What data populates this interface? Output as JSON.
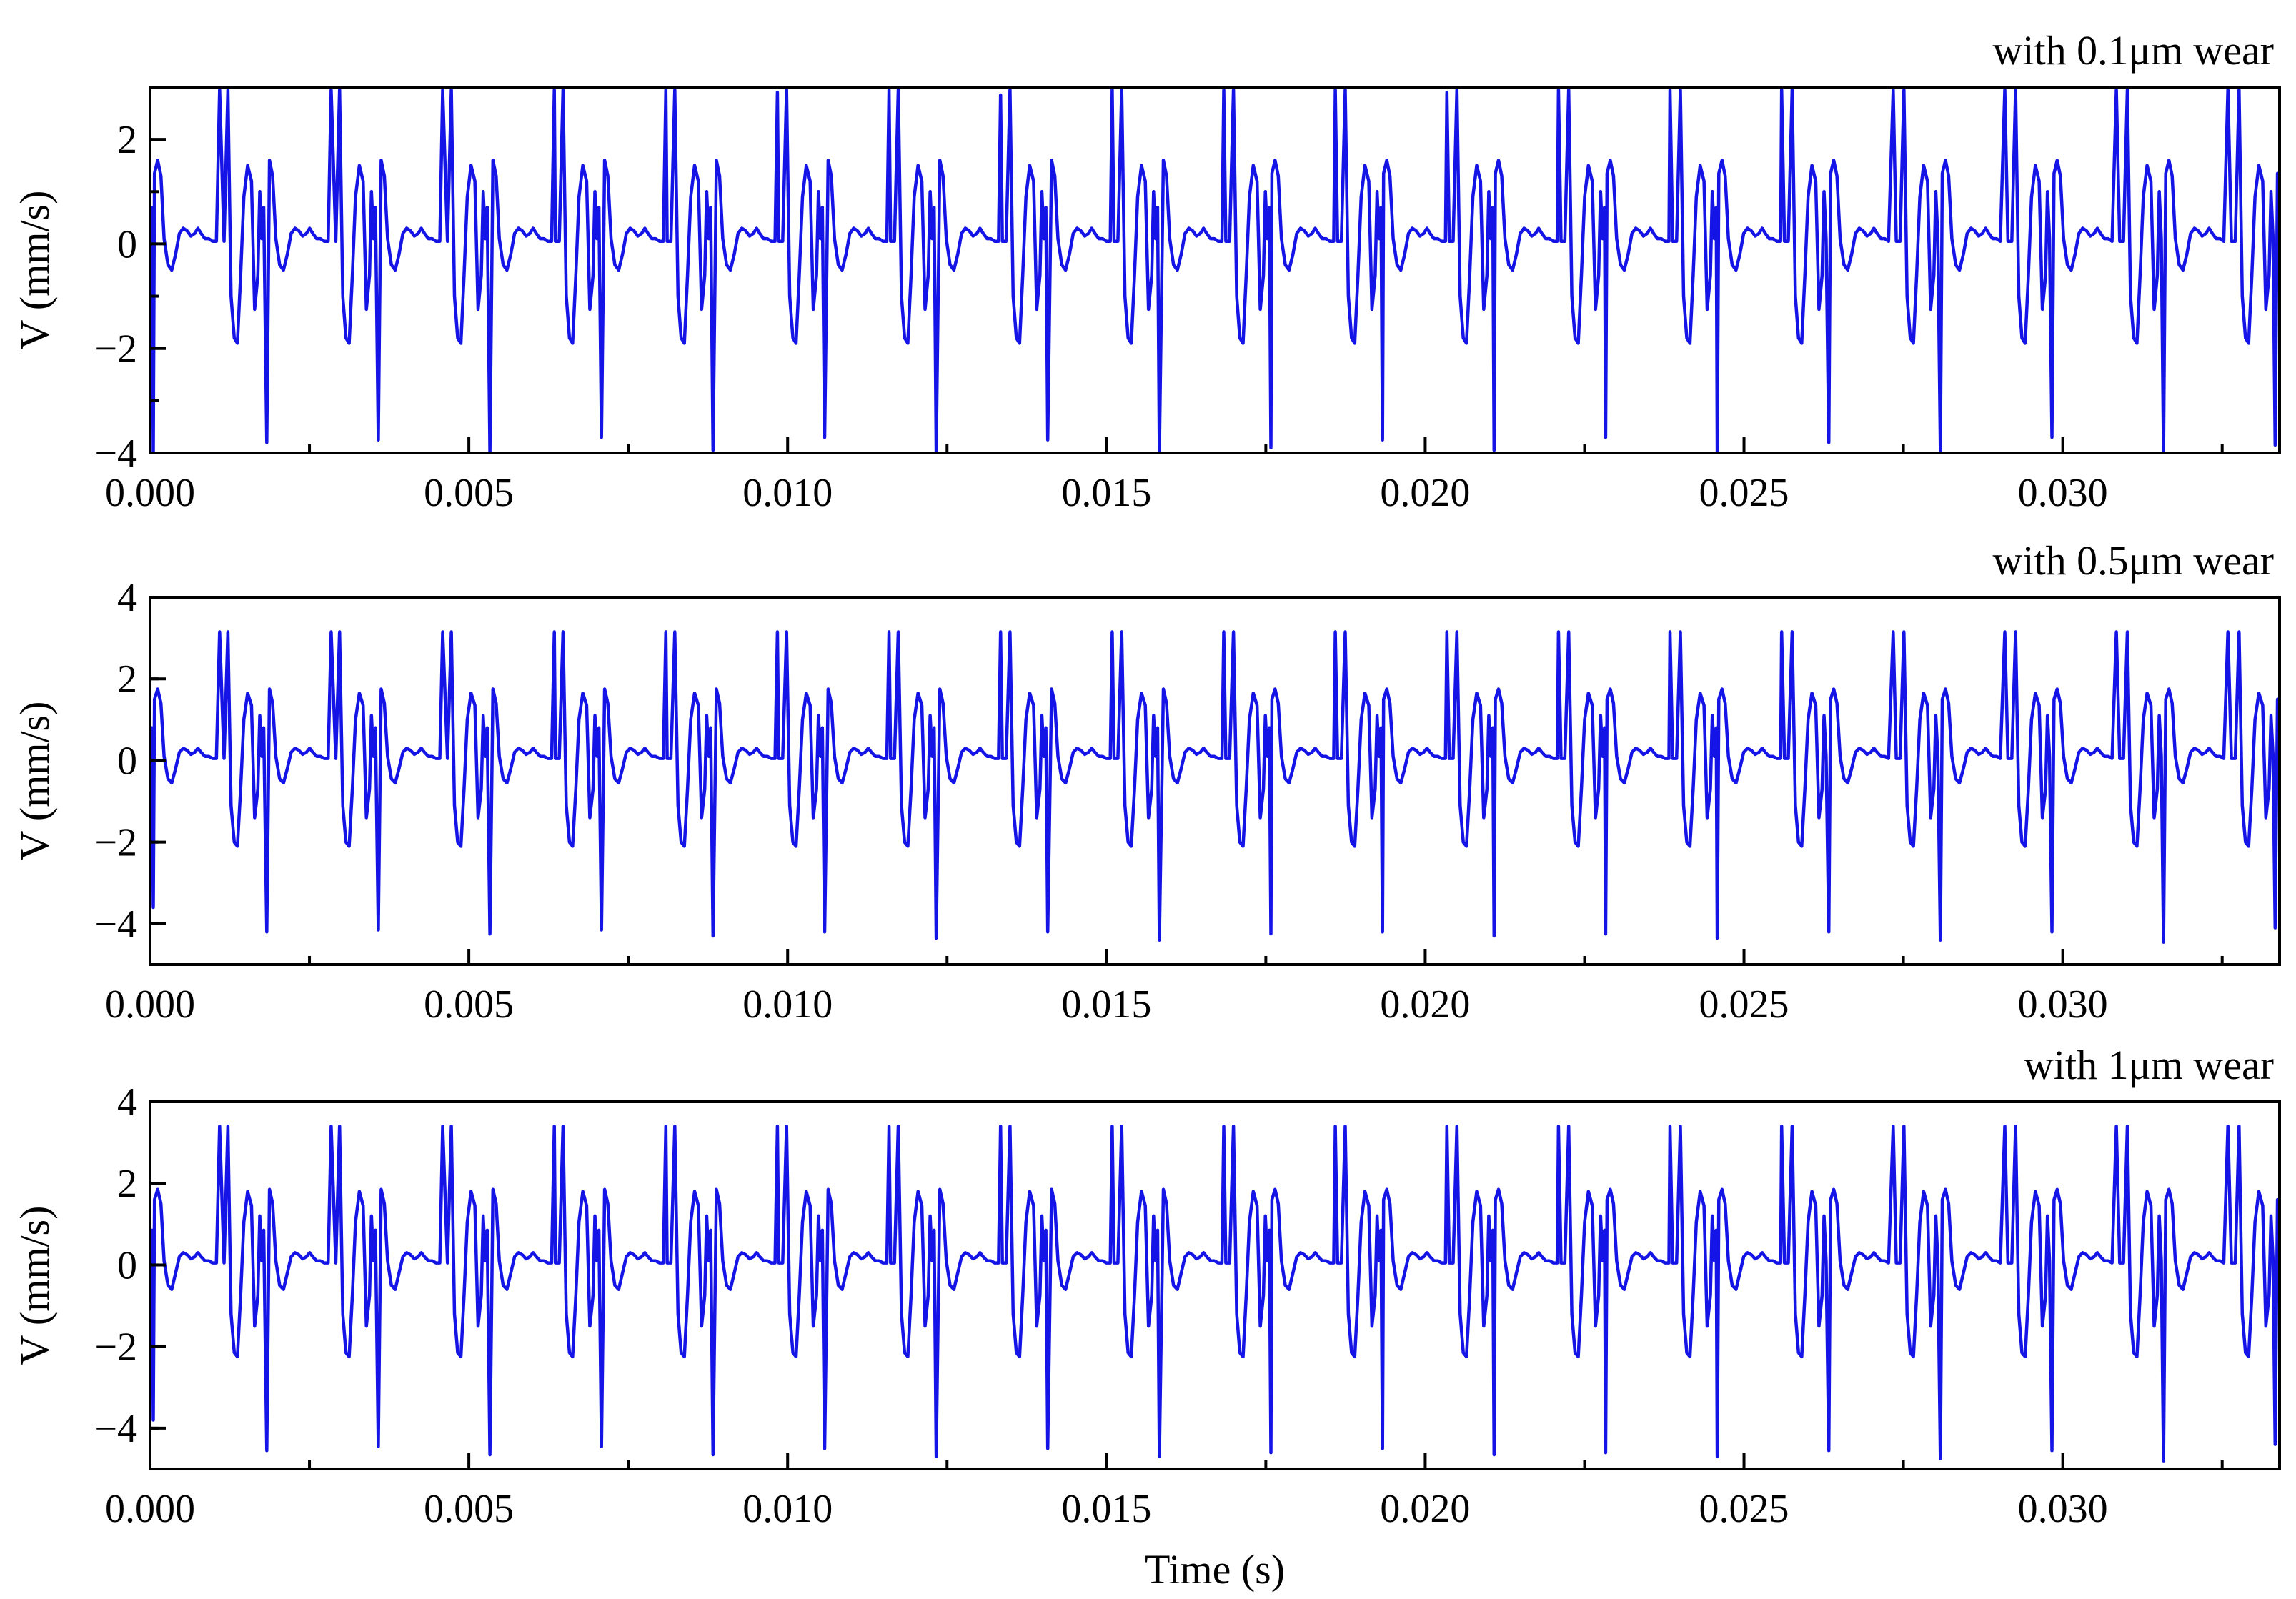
{
  "chart_data": [
    {
      "type": "line",
      "title": "with 0.1μm wear",
      "xlabel": "",
      "ylabel": "V (mm/s)",
      "xlim": [
        0,
        0.0334
      ],
      "ylim": [
        -4,
        3
      ],
      "xticks": [
        0.0,
        0.005,
        0.01,
        0.015,
        0.02,
        0.025,
        0.03
      ],
      "xtick_labels": [
        "0.000",
        "0.005",
        "0.010",
        "0.015",
        "0.020",
        "0.025",
        "0.030"
      ],
      "yticks": [
        -4,
        -2,
        0,
        2
      ],
      "ytick_labels": [
        "−4",
        "−2",
        "0",
        "2"
      ],
      "grid": false,
      "series": [
        {
          "color": "#1414e6",
          "period": 0.0017525,
          "cycle": {
            "t": [
              0,
              3e-05,
              7e-05,
              0.00012,
              0.00017,
              0.00022,
              0.00028,
              0.00034,
              0.0004,
              0.00046,
              0.00052,
              0.00058,
              0.00064,
              0.0007,
              0.00075,
              0.0008,
              0.00086,
              0.00092,
              0.00098,
              0.00104,
              0.0011,
              0.00116,
              0.00122,
              0.00127,
              0.00132,
              0.00137,
              0.00142,
              0.00147,
              0.00153,
              0.00159,
              0.00164,
              0.00169,
              0.00172,
              0.00175
            ],
            "v": [
              0.1,
              0.7,
              1.35,
              1.6,
              1.3,
              0.1,
              -0.4,
              -0.5,
              -0.2,
              0.2,
              0.3,
              0.25,
              0.15,
              0.2,
              0.3,
              0.2,
              0.1,
              0.1,
              0.05,
              0.05,
              0.05,
              0.05,
              2.95,
              -1.0,
              -1.8,
              -1.9,
              -0.6,
              0.9,
              1.5,
              1.2,
              -1.25,
              -0.6,
              1.0,
              0.1
            ]
          },
          "dips": [
            {
              "t": 5e-05,
              "v": -4.0
            },
            {
              "t": 0.00183,
              "v": -3.8
            },
            {
              "t": 0.00358,
              "v": -3.75
            },
            {
              "t": 0.00533,
              "v": -4.0
            },
            {
              "t": 0.00708,
              "v": -3.7
            },
            {
              "t": 0.00883,
              "v": -3.95
            },
            {
              "t": 0.01058,
              "v": -3.7
            },
            {
              "t": 0.01233,
              "v": -4.0
            },
            {
              "t": 0.01408,
              "v": -3.75
            },
            {
              "t": 0.01583,
              "v": -4.0
            },
            {
              "t": 0.01758,
              "v": -3.9
            },
            {
              "t": 0.01933,
              "v": -3.75
            },
            {
              "t": 0.02108,
              "v": -3.95
            },
            {
              "t": 0.02283,
              "v": -3.7
            },
            {
              "t": 0.02458,
              "v": -4.0
            },
            {
              "t": 0.02633,
              "v": -3.8
            },
            {
              "t": 0.02808,
              "v": -3.95
            },
            {
              "t": 0.02983,
              "v": -3.7
            },
            {
              "t": 0.03158,
              "v": -4.0
            },
            {
              "t": 0.03333,
              "v": -3.85
            }
          ],
          "spikes": [
            {
              "t": 0.00109,
              "v": 2.95
            },
            {
              "t": 0.00284,
              "v": 2.95
            },
            {
              "t": 0.00459,
              "v": 2.95
            },
            {
              "t": 0.00634,
              "v": 2.95
            },
            {
              "t": 0.00809,
              "v": 2.95
            },
            {
              "t": 0.00984,
              "v": 2.9
            },
            {
              "t": 0.01159,
              "v": 2.95
            },
            {
              "t": 0.01334,
              "v": 2.85
            },
            {
              "t": 0.01509,
              "v": 2.95
            },
            {
              "t": 0.01684,
              "v": 2.95
            },
            {
              "t": 0.01859,
              "v": 2.95
            },
            {
              "t": 0.02034,
              "v": 2.9
            },
            {
              "t": 0.02209,
              "v": 2.95
            },
            {
              "t": 0.02384,
              "v": 2.95
            },
            {
              "t": 0.02559,
              "v": 2.95
            },
            {
              "t": 0.02734,
              "v": 2.95
            },
            {
              "t": 0.02909,
              "v": 2.95
            },
            {
              "t": 0.03084,
              "v": 2.95
            },
            {
              "t": 0.03259,
              "v": 2.95
            }
          ]
        }
      ]
    },
    {
      "type": "line",
      "title": "with 0.5μm wear",
      "xlabel": "",
      "ylabel": "V (mm/s)",
      "xlim": [
        0,
        0.0334
      ],
      "ylim": [
        -5,
        4
      ],
      "xticks": [
        0.0,
        0.005,
        0.01,
        0.015,
        0.02,
        0.025,
        0.03
      ],
      "xtick_labels": [
        "0.000",
        "0.005",
        "0.010",
        "0.015",
        "0.020",
        "0.025",
        "0.030"
      ],
      "yticks": [
        -4,
        -2,
        0,
        2,
        4
      ],
      "ytick_labels": [
        "−4",
        "−2",
        "0",
        "2",
        "4"
      ],
      "grid": false,
      "series": [
        {
          "color": "#1414e6",
          "period": 0.0017525,
          "cycle": {
            "t": [
              0,
              3e-05,
              7e-05,
              0.00012,
              0.00017,
              0.00022,
              0.00028,
              0.00034,
              0.0004,
              0.00046,
              0.00052,
              0.00058,
              0.00064,
              0.0007,
              0.00075,
              0.0008,
              0.00086,
              0.00092,
              0.00098,
              0.00104,
              0.0011,
              0.00116,
              0.00122,
              0.00127,
              0.00132,
              0.00137,
              0.00142,
              0.00147,
              0.00153,
              0.00159,
              0.00164,
              0.00169,
              0.00172,
              0.00175
            ],
            "v": [
              0.1,
              0.8,
              1.5,
              1.75,
              1.4,
              0.1,
              -0.45,
              -0.55,
              -0.2,
              0.2,
              0.3,
              0.25,
              0.15,
              0.2,
              0.3,
              0.2,
              0.1,
              0.1,
              0.05,
              0.05,
              0.05,
              0.05,
              3.15,
              -1.1,
              -2.0,
              -2.1,
              -0.7,
              1.0,
              1.65,
              1.35,
              -1.4,
              -0.7,
              1.1,
              0.1
            ]
          },
          "dips": [
            {
              "t": 5e-05,
              "v": -3.6
            },
            {
              "t": 0.00183,
              "v": -4.2
            },
            {
              "t": 0.00358,
              "v": -4.15
            },
            {
              "t": 0.00533,
              "v": -4.25
            },
            {
              "t": 0.00708,
              "v": -4.15
            },
            {
              "t": 0.00883,
              "v": -4.3
            },
            {
              "t": 0.01058,
              "v": -4.2
            },
            {
              "t": 0.01233,
              "v": -4.35
            },
            {
              "t": 0.01408,
              "v": -4.2
            },
            {
              "t": 0.01583,
              "v": -4.4
            },
            {
              "t": 0.01758,
              "v": -4.25
            },
            {
              "t": 0.01933,
              "v": -4.2
            },
            {
              "t": 0.02108,
              "v": -4.3
            },
            {
              "t": 0.02283,
              "v": -4.25
            },
            {
              "t": 0.02458,
              "v": -4.35
            },
            {
              "t": 0.02633,
              "v": -4.2
            },
            {
              "t": 0.02808,
              "v": -4.4
            },
            {
              "t": 0.02983,
              "v": -4.2
            },
            {
              "t": 0.03158,
              "v": -4.45
            },
            {
              "t": 0.03333,
              "v": -4.1
            }
          ],
          "spikes": [
            {
              "t": 0.00109,
              "v": 3.15
            },
            {
              "t": 0.00284,
              "v": 3.15
            },
            {
              "t": 0.00459,
              "v": 3.15
            },
            {
              "t": 0.00634,
              "v": 3.15
            },
            {
              "t": 0.00809,
              "v": 3.15
            },
            {
              "t": 0.00984,
              "v": 3.15
            },
            {
              "t": 0.01159,
              "v": 3.15
            },
            {
              "t": 0.01334,
              "v": 3.15
            },
            {
              "t": 0.01509,
              "v": 3.15
            },
            {
              "t": 0.01684,
              "v": 3.15
            },
            {
              "t": 0.01859,
              "v": 3.15
            },
            {
              "t": 0.02034,
              "v": 3.15
            },
            {
              "t": 0.02209,
              "v": 3.15
            },
            {
              "t": 0.02384,
              "v": 3.15
            },
            {
              "t": 0.02559,
              "v": 3.15
            },
            {
              "t": 0.02734,
              "v": 3.15
            },
            {
              "t": 0.02909,
              "v": 3.15
            },
            {
              "t": 0.03084,
              "v": 3.15
            },
            {
              "t": 0.03259,
              "v": 3.15
            }
          ]
        }
      ]
    },
    {
      "type": "line",
      "title": "with 1μm wear",
      "xlabel": "Time (s)",
      "ylabel": "V (mm/s)",
      "xlim": [
        0,
        0.0334
      ],
      "ylim": [
        -5,
        4
      ],
      "xticks": [
        0.0,
        0.005,
        0.01,
        0.015,
        0.02,
        0.025,
        0.03
      ],
      "xtick_labels": [
        "0.000",
        "0.005",
        "0.010",
        "0.015",
        "0.020",
        "0.025",
        "0.030"
      ],
      "yticks": [
        -4,
        -2,
        0,
        2,
        4
      ],
      "ytick_labels": [
        "−4",
        "−2",
        "0",
        "2",
        "4"
      ],
      "grid": false,
      "series": [
        {
          "color": "#1414e6",
          "period": 0.0017525,
          "cycle": {
            "t": [
              0,
              3e-05,
              7e-05,
              0.00012,
              0.00017,
              0.00022,
              0.00028,
              0.00034,
              0.0004,
              0.00046,
              0.00052,
              0.00058,
              0.00064,
              0.0007,
              0.00075,
              0.0008,
              0.00086,
              0.00092,
              0.00098,
              0.00104,
              0.0011,
              0.00116,
              0.00122,
              0.00127,
              0.00132,
              0.00137,
              0.00142,
              0.00147,
              0.00153,
              0.00159,
              0.00164,
              0.00169,
              0.00172,
              0.00175
            ],
            "v": [
              0.1,
              0.85,
              1.6,
              1.85,
              1.5,
              0.1,
              -0.5,
              -0.6,
              -0.2,
              0.2,
              0.3,
              0.25,
              0.15,
              0.2,
              0.3,
              0.2,
              0.1,
              0.1,
              0.05,
              0.05,
              0.05,
              0.05,
              3.4,
              -1.2,
              -2.15,
              -2.25,
              -0.75,
              1.05,
              1.8,
              1.45,
              -1.5,
              -0.75,
              1.2,
              0.1
            ]
          },
          "dips": [
            {
              "t": 5e-05,
              "v": -3.8
            },
            {
              "t": 0.00183,
              "v": -4.55
            },
            {
              "t": 0.00358,
              "v": -4.45
            },
            {
              "t": 0.00533,
              "v": -4.65
            },
            {
              "t": 0.00708,
              "v": -4.45
            },
            {
              "t": 0.00883,
              "v": -4.65
            },
            {
              "t": 0.01058,
              "v": -4.5
            },
            {
              "t": 0.01233,
              "v": -4.7
            },
            {
              "t": 0.01408,
              "v": -4.5
            },
            {
              "t": 0.01583,
              "v": -4.7
            },
            {
              "t": 0.01758,
              "v": -4.6
            },
            {
              "t": 0.01933,
              "v": -4.5
            },
            {
              "t": 0.02108,
              "v": -4.65
            },
            {
              "t": 0.02283,
              "v": -4.6
            },
            {
              "t": 0.02458,
              "v": -4.7
            },
            {
              "t": 0.02633,
              "v": -4.55
            },
            {
              "t": 0.02808,
              "v": -4.75
            },
            {
              "t": 0.02983,
              "v": -4.55
            },
            {
              "t": 0.03158,
              "v": -4.8
            },
            {
              "t": 0.03333,
              "v": -4.4
            }
          ],
          "spikes": [
            {
              "t": 0.00109,
              "v": 3.4
            },
            {
              "t": 0.00284,
              "v": 3.4
            },
            {
              "t": 0.00459,
              "v": 3.4
            },
            {
              "t": 0.00634,
              "v": 3.4
            },
            {
              "t": 0.00809,
              "v": 3.4
            },
            {
              "t": 0.00984,
              "v": 3.4
            },
            {
              "t": 0.01159,
              "v": 3.4
            },
            {
              "t": 0.01334,
              "v": 3.4
            },
            {
              "t": 0.01509,
              "v": 3.4
            },
            {
              "t": 0.01684,
              "v": 3.4
            },
            {
              "t": 0.01859,
              "v": 3.4
            },
            {
              "t": 0.02034,
              "v": 3.4
            },
            {
              "t": 0.02209,
              "v": 3.4
            },
            {
              "t": 0.02384,
              "v": 3.4
            },
            {
              "t": 0.02559,
              "v": 3.4
            },
            {
              "t": 0.02734,
              "v": 3.4
            },
            {
              "t": 0.02909,
              "v": 3.4
            },
            {
              "t": 0.03084,
              "v": 3.4
            },
            {
              "t": 0.03259,
              "v": 3.4
            }
          ]
        }
      ]
    }
  ]
}
